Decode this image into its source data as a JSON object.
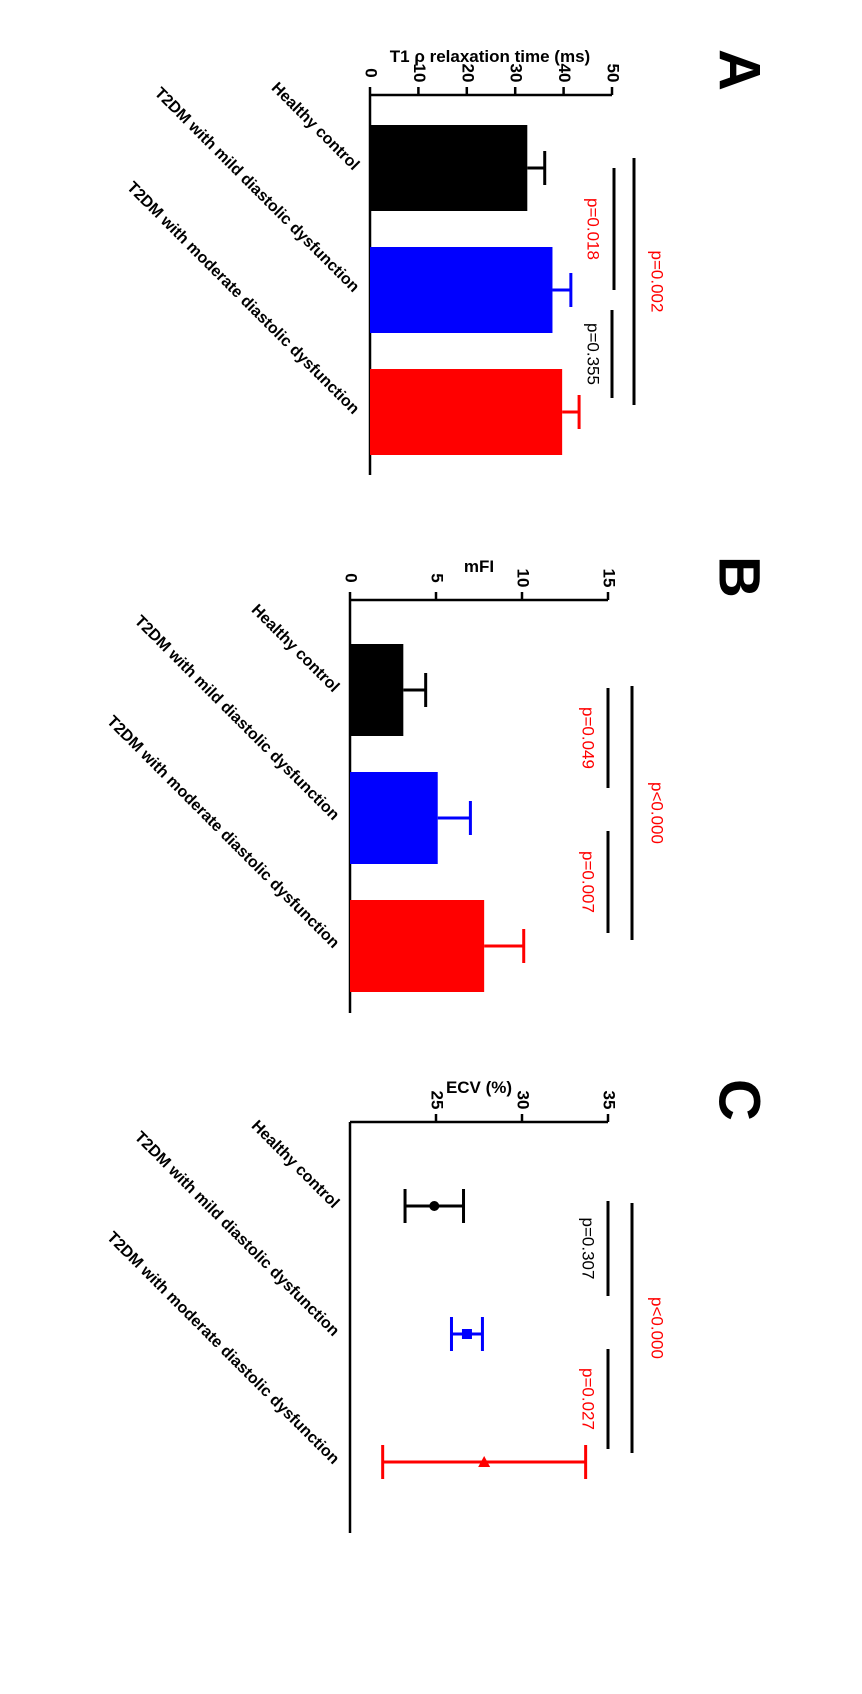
{
  "chart_data": [
    {
      "panel": "A",
      "type": "bar",
      "ylabel": "T1 ρ relaxation time (ms)",
      "ylim": [
        0,
        50
      ],
      "yticks": [
        "0",
        "10",
        "20",
        "30",
        "40",
        "50"
      ],
      "categories": [
        "Healthy control",
        "T2DM with mild diastolic dysfunction",
        "T2DM with moderate diastolic dysfunction"
      ],
      "values": [
        32.5,
        37.7,
        39.7
      ],
      "error": [
        3.6,
        3.8,
        3.5
      ],
      "colors": [
        "#000000",
        "#0000ff",
        "#ff0000"
      ],
      "comparisons": [
        {
          "label": "p=0.018",
          "color": "#ff0000"
        },
        {
          "label": "p=0.355",
          "color": "#000000"
        },
        {
          "label": "p=0.002",
          "color": "#ff0000"
        }
      ]
    },
    {
      "panel": "B",
      "type": "bar",
      "ylabel": "mFI",
      "ylim": [
        0,
        15
      ],
      "yticks": [
        "0",
        "5",
        "10",
        "15"
      ],
      "categories": [
        "Healthy control",
        "T2DM with mild diastolic dysfunction",
        "T2DM with moderate diastolic dysfunction"
      ],
      "values": [
        3.1,
        5.1,
        7.8
      ],
      "error": [
        1.3,
        1.9,
        2.3
      ],
      "colors": [
        "#000000",
        "#0000ff",
        "#ff0000"
      ],
      "comparisons": [
        {
          "label": "p=0.049",
          "color": "#ff0000"
        },
        {
          "label": "p=0.007",
          "color": "#ff0000"
        },
        {
          "label": "p<0.000",
          "color": "#ff0000"
        }
      ]
    },
    {
      "panel": "C",
      "type": "scatter",
      "ylabel": "ECV (%)",
      "ylim": [
        20,
        35
      ],
      "yticks": [
        "25",
        "30",
        "35"
      ],
      "categories": [
        "Healthy control",
        "T2DM with mild diastolic dysfunction",
        "T2DM with moderate diastolic dysfunction"
      ],
      "values": [
        24.9,
        26.8,
        27.8
      ],
      "error": [
        1.7,
        0.9,
        5.9
      ],
      "colors": [
        "#000000",
        "#0000ff",
        "#ff0000"
      ],
      "comparisons": [
        {
          "label": "p=0.307",
          "color": "#000000"
        },
        {
          "label": "p=0.027",
          "color": "#ff0000"
        },
        {
          "label": "p<0.000",
          "color": "#ff0000"
        }
      ]
    }
  ]
}
